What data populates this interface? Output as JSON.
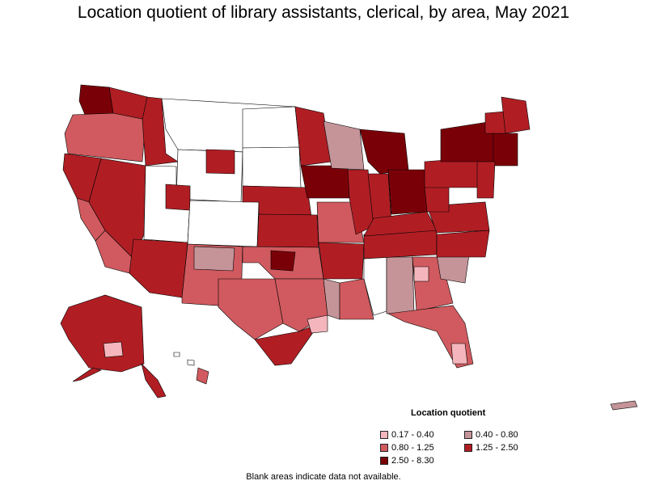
{
  "title": "Location quotient of library assistants, clerical, by area, May 2021",
  "legend": {
    "title": "Location quotient",
    "items": [
      {
        "label": "0.17 - 0.40",
        "color": "#f4b6bc"
      },
      {
        "label": "0.40 - 0.80",
        "color": "#c49499"
      },
      {
        "label": "0.80 - 1.25",
        "color": "#d05a5f"
      },
      {
        "label": "1.25 - 2.50",
        "color": "#b01e24"
      },
      {
        "label": "2.50 - 8.30",
        "color": "#7a0008"
      }
    ]
  },
  "footnote": "Blank areas indicate data not available.",
  "colors": {
    "blank": "#ffffff",
    "c1": "#f4b6bc",
    "c2": "#c49499",
    "c3": "#d05a5f",
    "c4": "#b01e24",
    "c5": "#7a0008"
  }
}
